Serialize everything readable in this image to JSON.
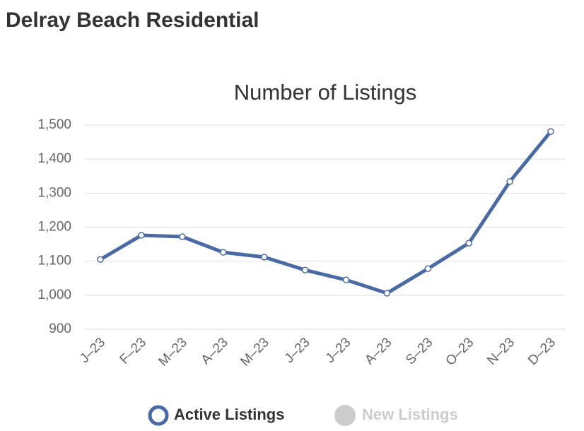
{
  "header": {
    "title": "Delray Beach Residential"
  },
  "chart_data": {
    "type": "line",
    "title": "Number of Listings",
    "categories": [
      "J–23",
      "F–23",
      "M–23",
      "A–23",
      "M–23",
      "J–23",
      "J–23",
      "A–23",
      "S–23",
      "O–23",
      "N–23",
      "D–23"
    ],
    "series": [
      {
        "name": "Active Listings",
        "color": "#4a6aa5",
        "values": [
          1105,
          1176,
          1172,
          1126,
          1112,
          1074,
          1045,
          1006,
          1078,
          1153,
          1334,
          1481
        ]
      }
    ],
    "inactive_series": [
      {
        "name": "New Listings",
        "color": "#cccccc"
      }
    ],
    "ylim": [
      900,
      1500
    ],
    "yticks": [
      900,
      {
        "value": 1000,
        "label": "1,000"
      },
      {
        "value": 1100,
        "label": "1,100"
      },
      {
        "value": 1200,
        "label": "1,200"
      },
      {
        "value": 1300,
        "label": "1,300"
      },
      {
        "value": 1400,
        "label": "1,400"
      },
      {
        "value": 1500,
        "label": "1,500"
      }
    ],
    "grid": true
  }
}
